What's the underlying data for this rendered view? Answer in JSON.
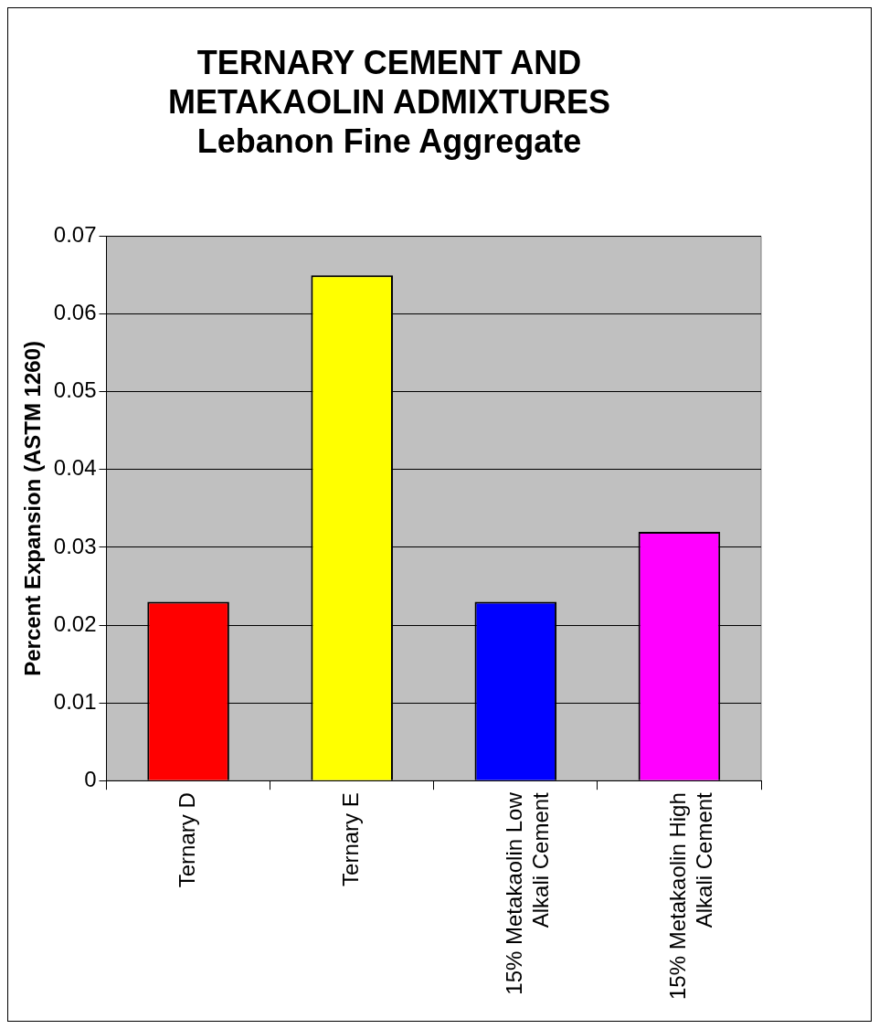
{
  "chart_data": {
    "type": "bar",
    "title": "TERNARY CEMENT AND METAKAOLIN ADMIXTURES",
    "subtitle": "Lebanon Fine Aggregate",
    "ylabel": "Percent Expansion (ASTM 1260)",
    "categories": [
      "Ternary D",
      "Ternary E",
      "15% Metakaolin Low Alkali Cement",
      "15% Metakaolin High Alkali Cement"
    ],
    "values": [
      0.023,
      0.065,
      0.023,
      0.032
    ],
    "colors": [
      "#ff0000",
      "#ffff00",
      "#0000ff",
      "#ff00ff"
    ],
    "ylim": [
      0,
      0.07
    ],
    "yticks": [
      0,
      0.01,
      0.02,
      0.03,
      0.04,
      0.05,
      0.06,
      0.07
    ],
    "grid": "y",
    "legend": false
  }
}
